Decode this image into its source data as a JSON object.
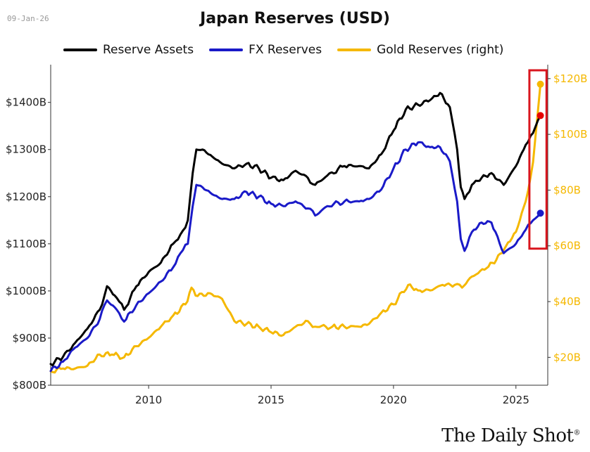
{
  "header": {
    "date": "09-Jan-26",
    "title": "Japan Reserves (USD)"
  },
  "brand": {
    "name": "The Daily Shot",
    "mark": "®"
  },
  "colors": {
    "reserve": "#000000",
    "fx": "#1a1ac8",
    "gold": "#f5b800",
    "highlight": "#d9161e",
    "endpoint_reserve": "#e60000"
  },
  "chart_data": {
    "type": "line",
    "title": "Japan Reserves (USD)",
    "x_range": [
      2006.0,
      2026.3
    ],
    "x_ticks": [
      2010,
      2015,
      2020,
      2025
    ],
    "y_left": {
      "range": [
        800,
        1480
      ],
      "ticks": [
        800,
        900,
        1000,
        1100,
        1200,
        1300,
        1400
      ],
      "tick_labels": [
        "$800B",
        "$900B",
        "$1000B",
        "$1100B",
        "$1200B",
        "$1300B",
        "$1400B"
      ]
    },
    "y_right": {
      "range": [
        10,
        125
      ],
      "ticks": [
        20,
        40,
        60,
        80,
        100,
        120
      ],
      "tick_labels": [
        "$20B",
        "$40B",
        "$60B",
        "$80B",
        "$100B",
        "$120B"
      ]
    },
    "legend": {
      "position": "top"
    },
    "series": [
      {
        "name": "Reserve Assets",
        "axis": "left",
        "color": "#000000",
        "points": [
          [
            2006.0,
            845
          ],
          [
            2006.5,
            860
          ],
          [
            2007.0,
            890
          ],
          [
            2007.5,
            920
          ],
          [
            2008.0,
            960
          ],
          [
            2008.3,
            1010
          ],
          [
            2008.7,
            985
          ],
          [
            2009.0,
            960
          ],
          [
            2009.5,
            1010
          ],
          [
            2010.0,
            1040
          ],
          [
            2010.5,
            1060
          ],
          [
            2011.0,
            1100
          ],
          [
            2011.3,
            1120
          ],
          [
            2011.6,
            1150
          ],
          [
            2011.8,
            1250
          ],
          [
            2011.95,
            1300
          ],
          [
            2012.2,
            1300
          ],
          [
            2012.6,
            1285
          ],
          [
            2013.0,
            1270
          ],
          [
            2013.5,
            1260
          ],
          [
            2014.0,
            1270
          ],
          [
            2014.5,
            1260
          ],
          [
            2015.0,
            1240
          ],
          [
            2015.5,
            1235
          ],
          [
            2016.0,
            1255
          ],
          [
            2016.5,
            1240
          ],
          [
            2016.8,
            1225
          ],
          [
            2017.3,
            1245
          ],
          [
            2018.0,
            1265
          ],
          [
            2018.6,
            1265
          ],
          [
            2019.0,
            1260
          ],
          [
            2019.5,
            1290
          ],
          [
            2020.0,
            1340
          ],
          [
            2020.5,
            1385
          ],
          [
            2021.0,
            1395
          ],
          [
            2021.5,
            1405
          ],
          [
            2021.9,
            1420
          ],
          [
            2022.3,
            1390
          ],
          [
            2022.6,
            1300
          ],
          [
            2022.75,
            1220
          ],
          [
            2022.9,
            1195
          ],
          [
            2023.2,
            1225
          ],
          [
            2023.6,
            1240
          ],
          [
            2024.0,
            1250
          ],
          [
            2024.5,
            1225
          ],
          [
            2025.0,
            1265
          ],
          [
            2025.4,
            1310
          ],
          [
            2025.7,
            1335
          ],
          [
            2026.0,
            1372
          ]
        ]
      },
      {
        "name": "FX Reserves",
        "axis": "left",
        "color": "#1a1ac8",
        "points": [
          [
            2006.0,
            830
          ],
          [
            2006.5,
            850
          ],
          [
            2007.0,
            880
          ],
          [
            2007.5,
            900
          ],
          [
            2008.0,
            940
          ],
          [
            2008.3,
            980
          ],
          [
            2008.7,
            960
          ],
          [
            2009.0,
            935
          ],
          [
            2009.5,
            970
          ],
          [
            2010.0,
            995
          ],
          [
            2010.5,
            1020
          ],
          [
            2011.0,
            1050
          ],
          [
            2011.3,
            1080
          ],
          [
            2011.6,
            1100
          ],
          [
            2011.8,
            1180
          ],
          [
            2011.95,
            1225
          ],
          [
            2012.2,
            1220
          ],
          [
            2012.6,
            1205
          ],
          [
            2013.0,
            1195
          ],
          [
            2013.5,
            1195
          ],
          [
            2014.0,
            1210
          ],
          [
            2014.5,
            1200
          ],
          [
            2015.0,
            1185
          ],
          [
            2015.5,
            1180
          ],
          [
            2016.0,
            1190
          ],
          [
            2016.5,
            1175
          ],
          [
            2016.8,
            1160
          ],
          [
            2017.3,
            1180
          ],
          [
            2018.0,
            1190
          ],
          [
            2018.6,
            1190
          ],
          [
            2019.0,
            1195
          ],
          [
            2019.5,
            1215
          ],
          [
            2020.0,
            1260
          ],
          [
            2020.5,
            1300
          ],
          [
            2021.0,
            1315
          ],
          [
            2021.5,
            1305
          ],
          [
            2021.9,
            1305
          ],
          [
            2022.3,
            1275
          ],
          [
            2022.6,
            1190
          ],
          [
            2022.75,
            1110
          ],
          [
            2022.9,
            1085
          ],
          [
            2023.2,
            1125
          ],
          [
            2023.6,
            1145
          ],
          [
            2024.0,
            1145
          ],
          [
            2024.5,
            1080
          ],
          [
            2025.0,
            1100
          ],
          [
            2025.4,
            1130
          ],
          [
            2025.7,
            1150
          ],
          [
            2026.0,
            1165
          ]
        ]
      },
      {
        "name": "Gold Reserves (right)",
        "axis": "right",
        "color": "#f5b800",
        "points": [
          [
            2006.0,
            15
          ],
          [
            2006.5,
            16
          ],
          [
            2007.0,
            16
          ],
          [
            2007.5,
            17
          ],
          [
            2008.0,
            21
          ],
          [
            2008.5,
            21
          ],
          [
            2009.0,
            20
          ],
          [
            2009.5,
            24
          ],
          [
            2010.0,
            27
          ],
          [
            2010.5,
            31
          ],
          [
            2011.0,
            35
          ],
          [
            2011.5,
            39
          ],
          [
            2011.75,
            45
          ],
          [
            2012.0,
            42
          ],
          [
            2012.5,
            43
          ],
          [
            2013.0,
            41
          ],
          [
            2013.5,
            33
          ],
          [
            2014.0,
            32
          ],
          [
            2014.5,
            31
          ],
          [
            2015.0,
            29
          ],
          [
            2015.5,
            28
          ],
          [
            2016.0,
            31
          ],
          [
            2016.5,
            33
          ],
          [
            2016.8,
            31
          ],
          [
            2017.5,
            31
          ],
          [
            2018.0,
            31
          ],
          [
            2018.6,
            31
          ],
          [
            2019.0,
            32
          ],
          [
            2019.5,
            36
          ],
          [
            2020.0,
            39
          ],
          [
            2020.6,
            46
          ],
          [
            2021.0,
            44
          ],
          [
            2021.5,
            44
          ],
          [
            2022.0,
            46
          ],
          [
            2022.5,
            46
          ],
          [
            2022.8,
            45
          ],
          [
            2023.2,
            49
          ],
          [
            2023.8,
            52
          ],
          [
            2024.2,
            55
          ],
          [
            2024.6,
            60
          ],
          [
            2025.0,
            65
          ],
          [
            2025.4,
            76
          ],
          [
            2025.7,
            90
          ],
          [
            2026.0,
            118
          ]
        ]
      }
    ],
    "annotation": {
      "type": "highlight-box",
      "x_range": [
        2025.55,
        2026.25
      ],
      "color": "#d9161e"
    }
  }
}
